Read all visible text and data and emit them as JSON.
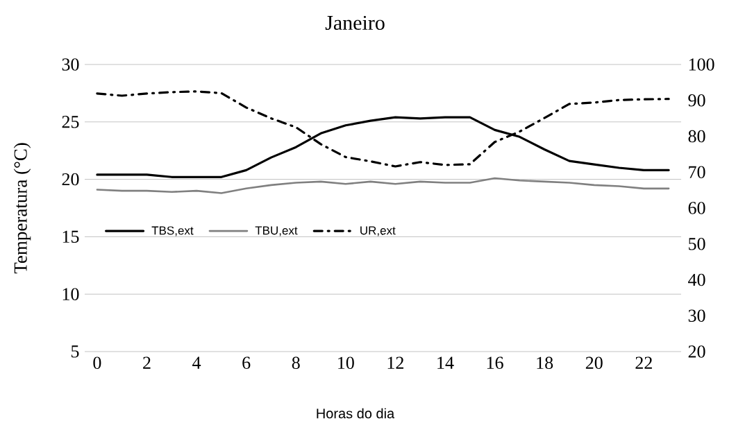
{
  "chart_data": {
    "type": "line",
    "title": "Janeiro",
    "xlabel": "Horas do dia",
    "ylabel": "Temperatura (°C)",
    "x": [
      0,
      1,
      2,
      3,
      4,
      5,
      6,
      7,
      8,
      9,
      10,
      11,
      12,
      13,
      14,
      15,
      16,
      17,
      18,
      19,
      20,
      21,
      22,
      23
    ],
    "xlim": [
      -0.5,
      23.5
    ],
    "xticks": [
      0,
      2,
      4,
      6,
      8,
      10,
      12,
      14,
      16,
      18,
      20,
      22
    ],
    "ylim": [
      5,
      30
    ],
    "yticks": [
      5,
      10,
      15,
      20,
      25,
      30
    ],
    "y2lim": [
      20,
      100
    ],
    "y2ticks": [
      20,
      30,
      40,
      50,
      60,
      70,
      80,
      90,
      100
    ],
    "grid": "y",
    "legend": "left",
    "series": [
      {
        "name": "TBS,ext",
        "color": "#000000",
        "line_style": "solid",
        "values": [
          20.4,
          20.4,
          20.4,
          20.2,
          20.2,
          20.2,
          20.8,
          21.9,
          22.8,
          24.0,
          24.7,
          25.1,
          25.4,
          25.3,
          25.4,
          25.4,
          24.3,
          23.7,
          22.6,
          21.6,
          21.3,
          21.0,
          20.8,
          20.8
        ]
      },
      {
        "name": "TBU,ext",
        "color": "#808080",
        "line_style": "solid",
        "values": [
          19.1,
          19.0,
          19.0,
          18.9,
          19.0,
          18.8,
          19.2,
          19.5,
          19.7,
          19.8,
          19.6,
          19.8,
          19.6,
          19.8,
          19.7,
          19.7,
          20.1,
          19.9,
          19.8,
          19.7,
          19.5,
          19.4,
          19.2,
          19.2
        ]
      },
      {
        "name": "UR,ext",
        "color": "#000000",
        "line_style": "dashdot",
        "axis": "y2",
        "values": [
          91.9,
          91.3,
          91.9,
          92.3,
          92.5,
          92.0,
          88.0,
          85.0,
          82.5,
          77.8,
          74.2,
          73.0,
          71.6,
          72.8,
          72.0,
          72.2,
          78.4,
          81.3,
          85.1,
          89.0,
          89.4,
          90.1,
          90.3,
          90.4
        ]
      }
    ]
  }
}
